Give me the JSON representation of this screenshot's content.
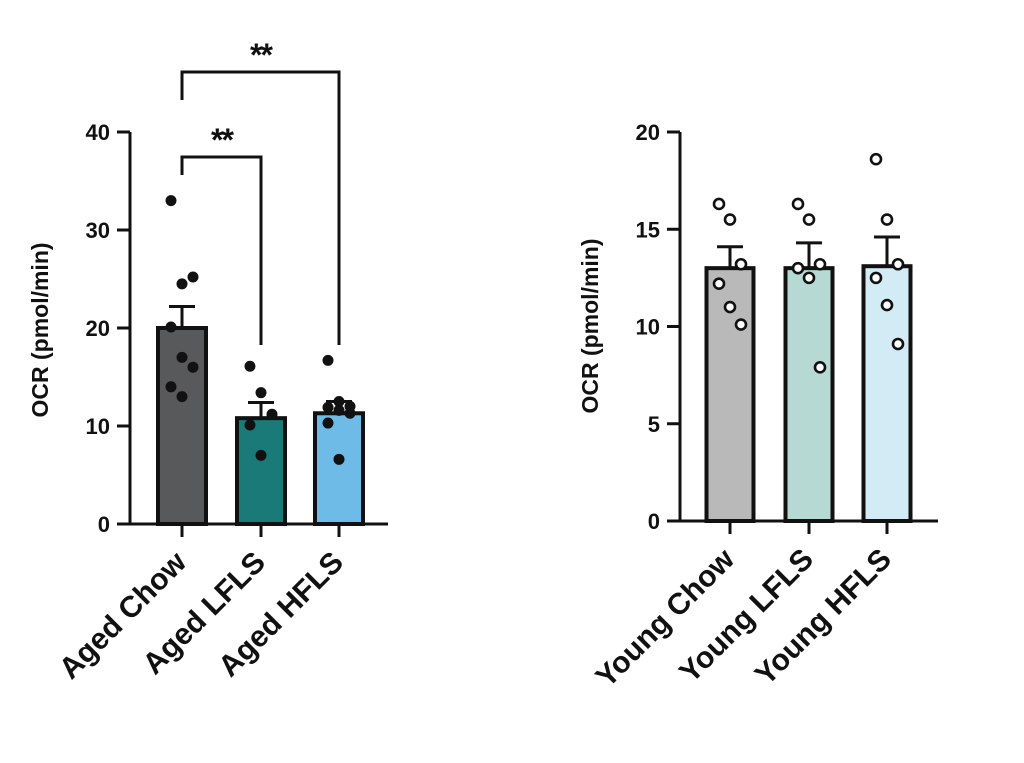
{
  "chart_data": [
    {
      "type": "bar",
      "ylabel": "OCR (pmol/min)",
      "ylim": [
        0,
        40
      ],
      "yticks": [
        0,
        10,
        20,
        30,
        40
      ],
      "categories": [
        "Aged Chow",
        "Aged LFLS",
        "Aged HFLS"
      ],
      "colors": [
        "#58595b",
        "#1a7a78",
        "#6dbbe6"
      ],
      "values": [
        20,
        10.8,
        11.3
      ],
      "errors": [
        2.2,
        1.6,
        1.2
      ],
      "points": [
        [
          33,
          24.5,
          25.2,
          20.1,
          17,
          16,
          14,
          13
        ],
        [
          16.1,
          13.4,
          11.2,
          10.1,
          7
        ],
        [
          16.7,
          12.5,
          12,
          11.9,
          11.6,
          11.3,
          10.3,
          6.6
        ]
      ],
      "point_style": "filled",
      "significance": [
        {
          "from": "Aged Chow",
          "to": "Aged LFLS",
          "label": "**"
        },
        {
          "from": "Aged Chow",
          "to": "Aged HFLS",
          "label": "**"
        }
      ],
      "grid": false
    },
    {
      "type": "bar",
      "ylabel": "OCR (pmol/min)",
      "ylim": [
        0,
        20
      ],
      "yticks": [
        0,
        5,
        10,
        15,
        20
      ],
      "categories": [
        "Young Chow",
        "Young LFLS",
        "Young HFLS"
      ],
      "colors": [
        "#b9b9b9",
        "#b7d9d3",
        "#d3ebf4"
      ],
      "values": [
        13,
        13,
        13.1
      ],
      "errors": [
        1.1,
        1.3,
        1.5
      ],
      "points": [
        [
          16.3,
          15.5,
          13.2,
          12.2,
          11,
          10.1
        ],
        [
          16.3,
          15.5,
          13.2,
          13,
          12.5,
          7.9
        ],
        [
          18.6,
          15.5,
          13.2,
          12.5,
          11.1,
          9.1
        ]
      ],
      "point_style": "open",
      "significance": [],
      "grid": false
    }
  ]
}
